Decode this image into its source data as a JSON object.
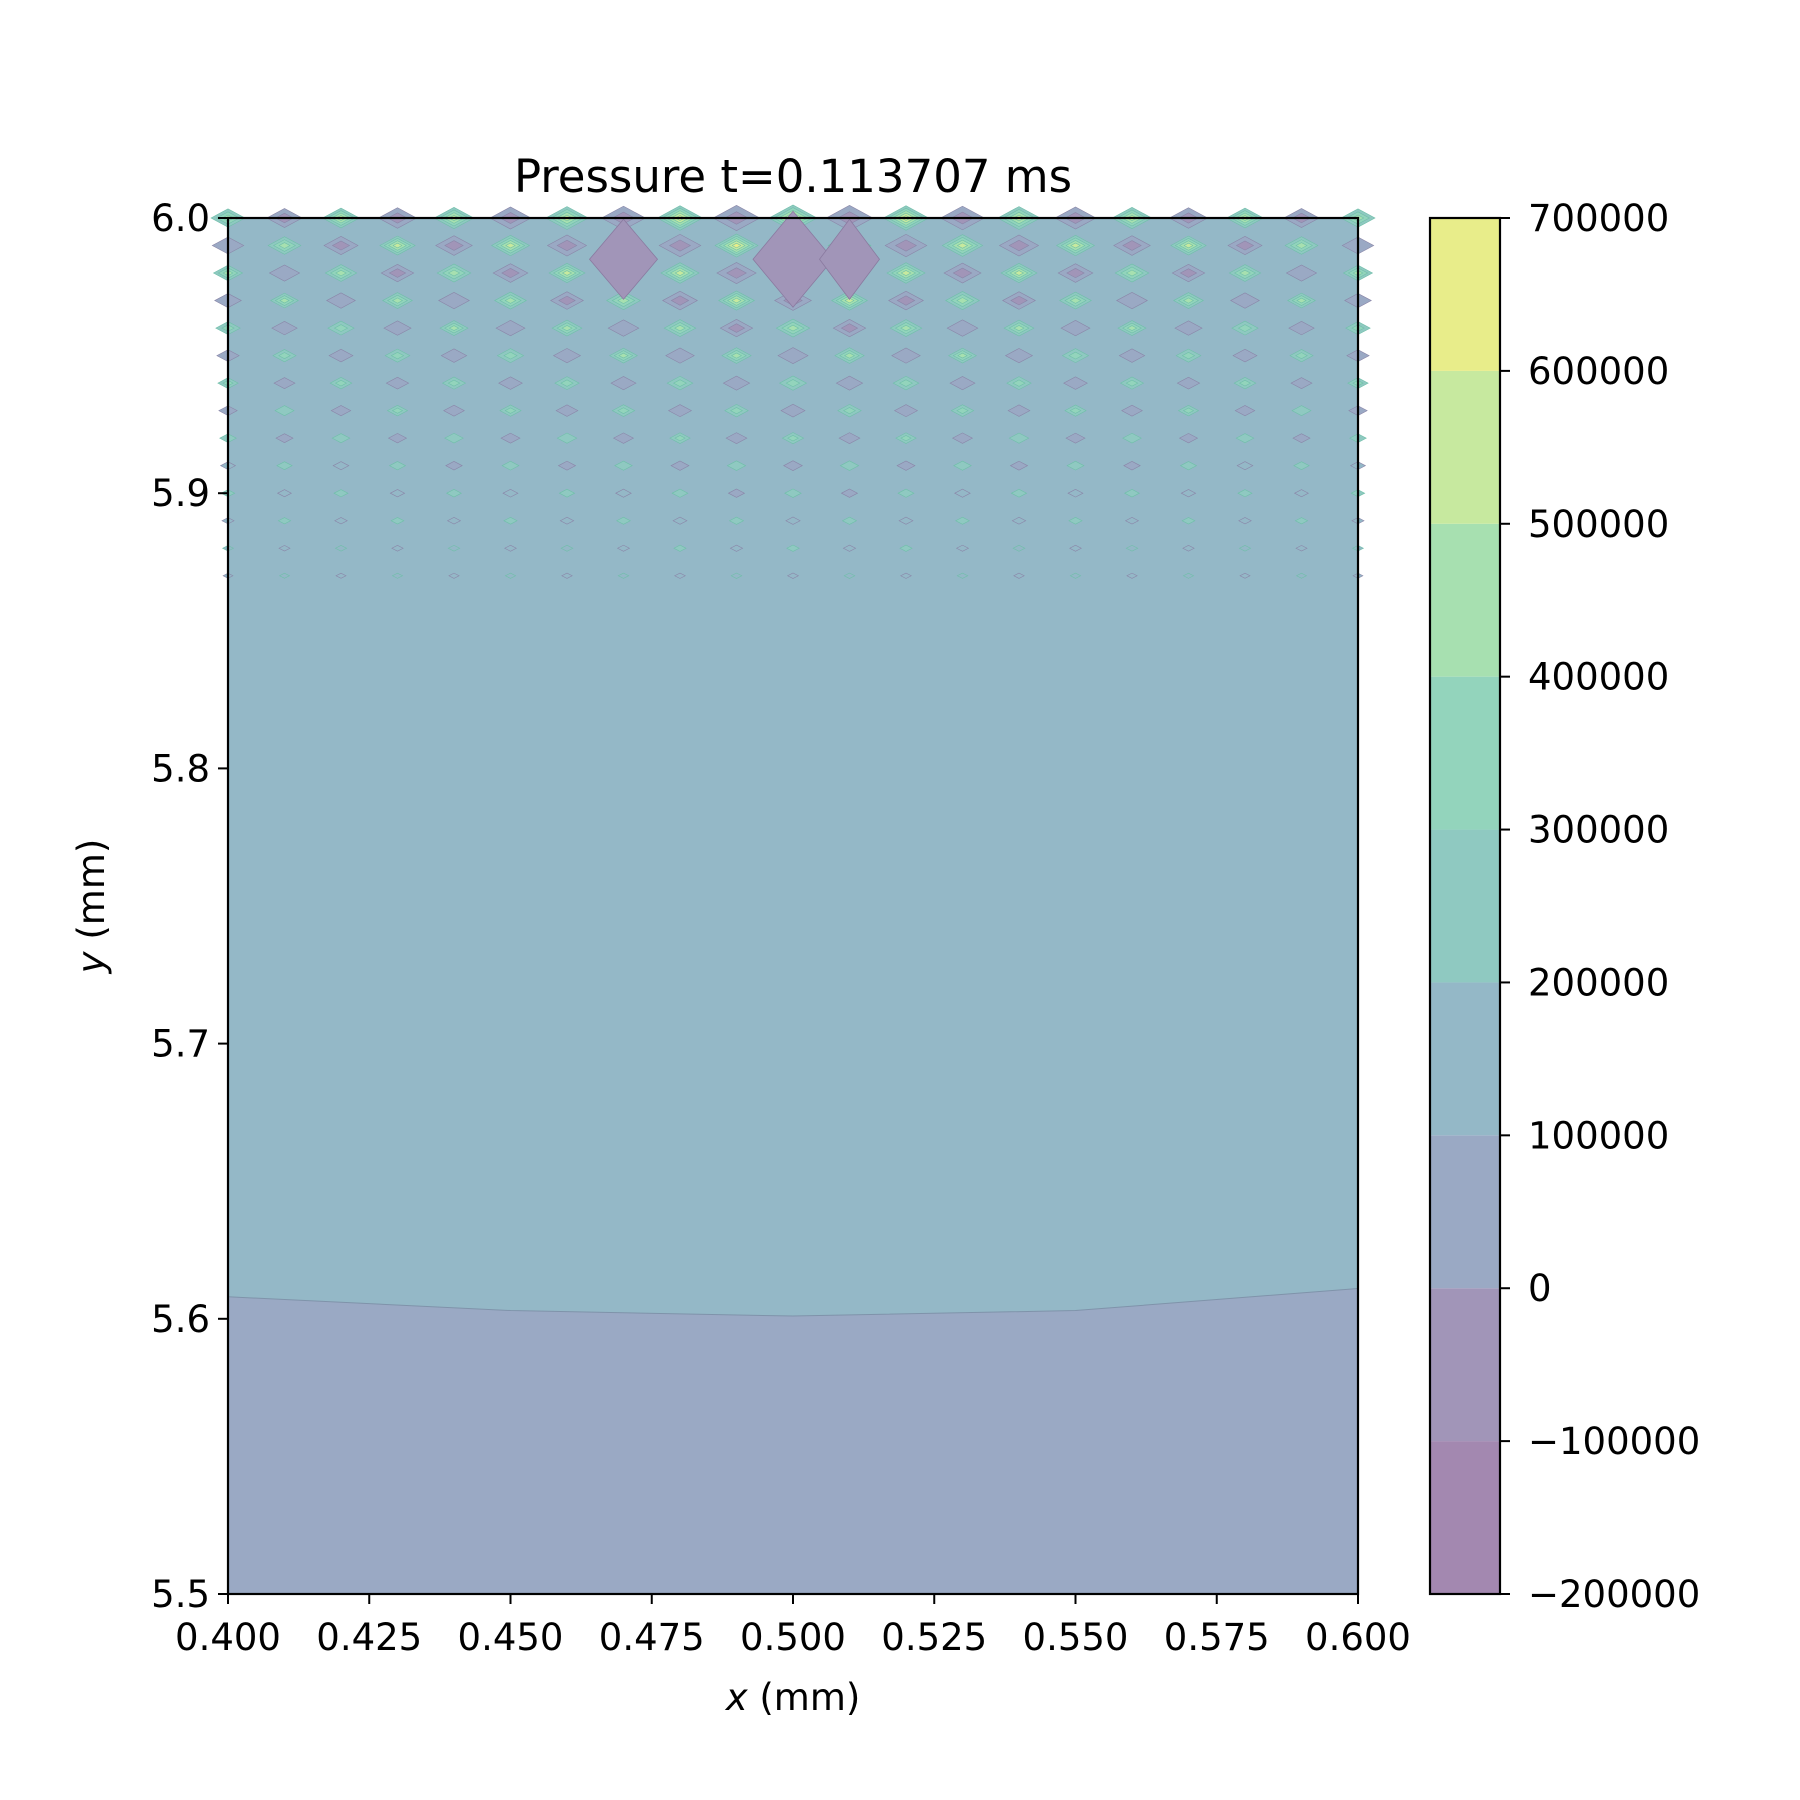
{
  "chart_data": {
    "type": "contourf",
    "title": "Pressure t=0.113707 ms",
    "xlabel": {
      "var": "x",
      "unit": " (mm)"
    },
    "ylabel": {
      "var": "y",
      "unit": " (mm)"
    },
    "xlim": [
      0.4,
      0.6
    ],
    "ylim": [
      5.5,
      6.0
    ],
    "x_ticks": [
      0.4,
      0.425,
      0.45,
      0.475,
      0.5,
      0.525,
      0.55,
      0.575,
      0.6
    ],
    "x_tick_labels": [
      "0.400",
      "0.425",
      "0.450",
      "0.475",
      "0.500",
      "0.525",
      "0.550",
      "0.575",
      "0.600"
    ],
    "y_ticks": [
      5.5,
      5.6,
      5.7,
      5.8,
      5.9,
      6.0
    ],
    "y_tick_labels": [
      "5.5",
      "5.6",
      "5.7",
      "5.8",
      "5.9",
      "6.0"
    ],
    "colorbar": {
      "levels": [
        -200000,
        -100000,
        0,
        100000,
        200000,
        300000,
        400000,
        500000,
        600000,
        700000
      ],
      "tick_labels": [
        "−200000",
        "−100000",
        "0",
        "100000",
        "200000",
        "300000",
        "400000",
        "500000",
        "600000",
        "700000"
      ],
      "band_colors": [
        "#a388b0",
        "#a195b8",
        "#9aa9c4",
        "#94b8c7",
        "#8fc9c1",
        "#93d4bc",
        "#a7e0b0",
        "#c7e99f",
        "#e8ed8a"
      ]
    },
    "regions": {
      "boundary_curve": {
        "x": [
          0.4,
          0.45,
          0.5,
          0.55,
          0.6
        ],
        "y": [
          5.608,
          5.603,
          5.601,
          5.603,
          5.611
        ]
      },
      "band_below_boundary": "0 to 100000",
      "band_above_boundary": "100000 to 200000",
      "oscillation_zone_y": [
        5.84,
        6.0
      ],
      "oscillation_grid_x_step": 0.01,
      "oscillation_grid_y_step": 0.01
    }
  }
}
